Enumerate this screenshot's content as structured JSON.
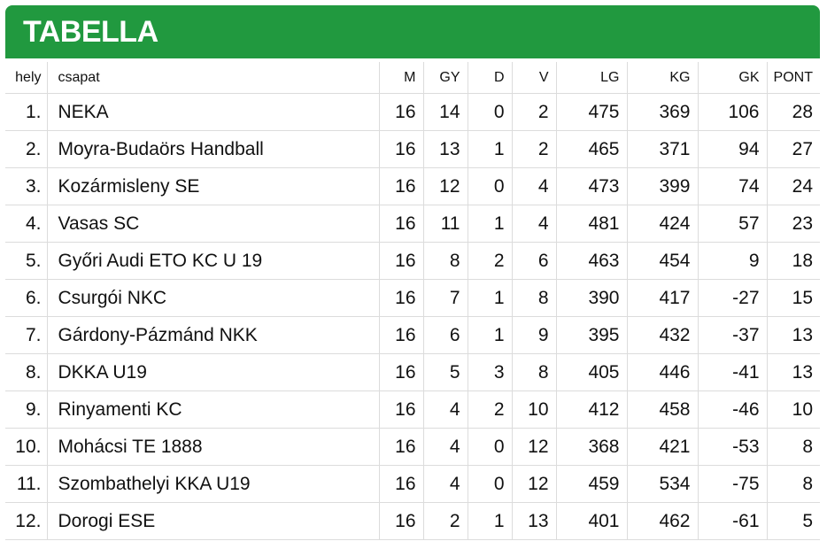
{
  "header": {
    "title": "TABELLA"
  },
  "table": {
    "columns": [
      "hely",
      "csapat",
      "M",
      "GY",
      "D",
      "V",
      "LG",
      "KG",
      "GK",
      "PONT"
    ],
    "rows": [
      [
        "1.",
        "NEKA",
        16,
        14,
        0,
        2,
        475,
        369,
        106,
        28
      ],
      [
        "2.",
        "Moyra-Budaörs Handball",
        16,
        13,
        1,
        2,
        465,
        371,
        94,
        27
      ],
      [
        "3.",
        "Kozármisleny SE",
        16,
        12,
        0,
        4,
        473,
        399,
        74,
        24
      ],
      [
        "4.",
        "Vasas SC",
        16,
        11,
        1,
        4,
        481,
        424,
        57,
        23
      ],
      [
        "5.",
        "Győri Audi ETO KC U 19",
        16,
        8,
        2,
        6,
        463,
        454,
        9,
        18
      ],
      [
        "6.",
        "Csurgói NKC",
        16,
        7,
        1,
        8,
        390,
        417,
        -27,
        15
      ],
      [
        "7.",
        "Gárdony-Pázmánd NKK",
        16,
        6,
        1,
        9,
        395,
        432,
        -37,
        13
      ],
      [
        "8.",
        "DKKA U19",
        16,
        5,
        3,
        8,
        405,
        446,
        -41,
        13
      ],
      [
        "9.",
        "Rinyamenti KC",
        16,
        4,
        2,
        10,
        412,
        458,
        -46,
        10
      ],
      [
        "10.",
        "Mohácsi TE 1888",
        16,
        4,
        0,
        12,
        368,
        421,
        -53,
        8
      ],
      [
        "11.",
        "Szombathelyi KKA U19",
        16,
        4,
        0,
        12,
        459,
        534,
        -75,
        8
      ],
      [
        "12.",
        "Dorogi ESE",
        16,
        2,
        1,
        13,
        401,
        462,
        -61,
        5
      ]
    ]
  }
}
